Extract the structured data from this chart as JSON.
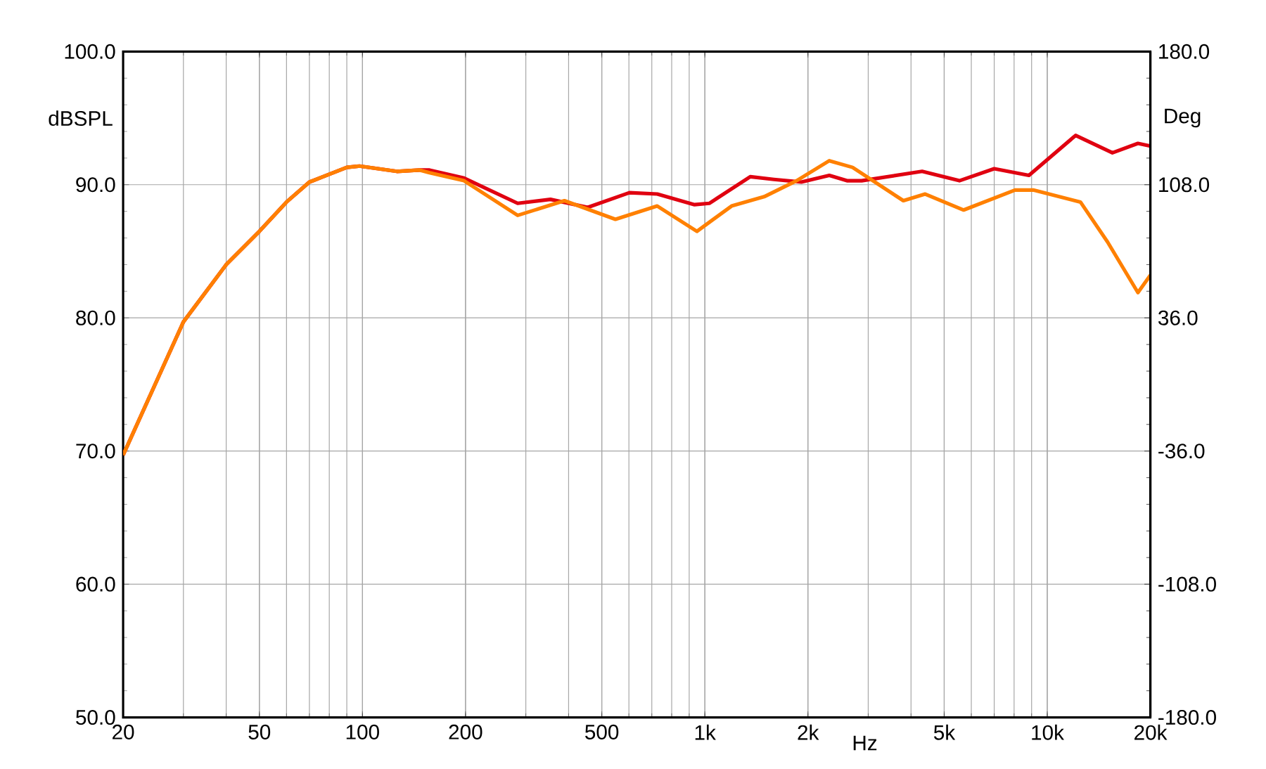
{
  "chart_data": {
    "type": "line",
    "xlabel": "Hz",
    "ylabel": "dBSPL",
    "y2label": "Deg",
    "log": "x",
    "grid": true,
    "xlim": [
      20,
      20000
    ],
    "xticks": [
      20,
      50,
      100,
      200,
      500,
      {
        "value": 1000,
        "label": "1k"
      },
      {
        "value": 2000,
        "label": "2k"
      },
      {
        "value": 5000,
        "label": "5k"
      },
      {
        "value": 10000,
        "label": "10k"
      },
      {
        "value": 20000,
        "label": "20k"
      }
    ],
    "ylim": [
      50,
      100
    ],
    "yticks": [
      {
        "value": 50,
        "label": "50.0"
      },
      {
        "value": 60,
        "label": "60.0"
      },
      {
        "value": 70,
        "label": "70.0"
      },
      {
        "value": 80,
        "label": "80.0"
      },
      {
        "value": 90,
        "label": "90.0"
      },
      {
        "value": 100,
        "label": "100.0"
      }
    ],
    "y2lim": [
      -180,
      180
    ],
    "y2ticks": [
      {
        "value": -180,
        "label": "-180.0"
      },
      {
        "value": -108,
        "label": "-108.0"
      },
      {
        "value": -36,
        "label": "-36.0"
      },
      {
        "value": 36,
        "label": "36.0"
      },
      {
        "value": 108,
        "label": "108.0"
      },
      {
        "value": 180,
        "label": "180.0"
      }
    ],
    "series": [
      {
        "color": "#e00010",
        "x": [
          20,
          30,
          40,
          50,
          60,
          70,
          90,
          98,
          126,
          147,
          157,
          198,
          284,
          354,
          455,
          602,
          726,
          933,
          1030,
          1357,
          1590,
          1914,
          2309,
          2600,
          2871,
          4310,
          5540,
          7000,
          8840,
          12100,
          15500,
          18400,
          20000
        ],
        "values": [
          69.7,
          79.7,
          84.0,
          86.5,
          88.7,
          90.2,
          91.3,
          91.4,
          91.0,
          91.1,
          91.1,
          90.5,
          88.6,
          88.9,
          88.3,
          89.4,
          89.3,
          88.5,
          88.6,
          90.6,
          90.4,
          90.2,
          90.7,
          90.3,
          90.3,
          91.0,
          90.3,
          91.2,
          90.7,
          93.7,
          92.4,
          93.1,
          92.9
        ]
      },
      {
        "color": "#ff8000",
        "x": [
          20,
          30,
          40,
          50,
          60,
          70,
          90,
          98,
          126,
          147,
          157,
          198,
          284,
          389,
          548,
          726,
          948,
          1197,
          1490,
          1853,
          2309,
          2700,
          3800,
          4400,
          5700,
          8050,
          9100,
          12500,
          15000,
          18400,
          20000
        ],
        "values": [
          69.7,
          79.7,
          84.0,
          86.5,
          88.7,
          90.2,
          91.3,
          91.4,
          91.0,
          91.1,
          90.9,
          90.3,
          87.7,
          88.8,
          87.4,
          88.4,
          86.5,
          88.4,
          89.1,
          90.3,
          91.8,
          91.3,
          88.8,
          89.3,
          88.1,
          89.6,
          89.6,
          88.7,
          85.7,
          81.9,
          83.2
        ]
      }
    ]
  }
}
